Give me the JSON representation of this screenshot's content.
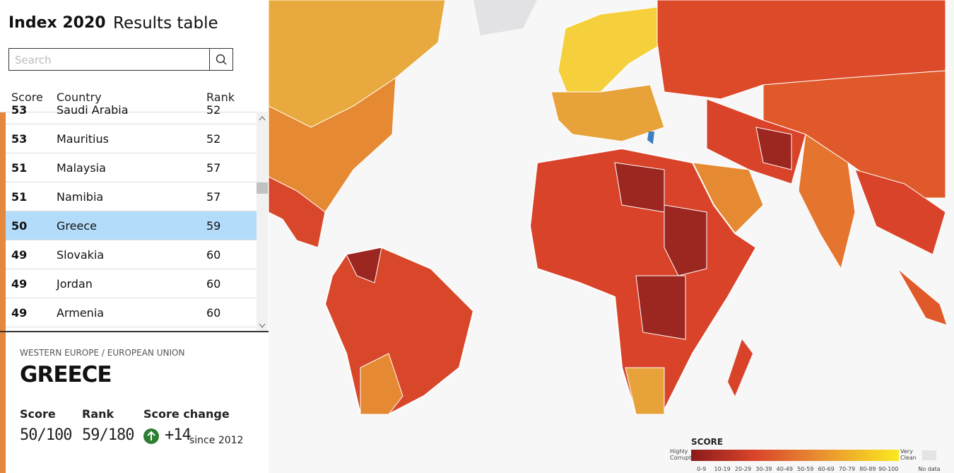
{
  "header": {
    "title": "Index 2020",
    "subtitle": "Results table"
  },
  "search": {
    "placeholder": "Search"
  },
  "table": {
    "columns": [
      "Score",
      "Country",
      "Rank"
    ],
    "rows": [
      [
        53,
        "Saudi Arabia",
        52
      ],
      [
        53,
        "Mauritius",
        52
      ],
      [
        51,
        "Malaysia",
        57
      ],
      [
        51,
        "Namibia",
        57
      ],
      [
        50,
        "Greece",
        59
      ],
      [
        49,
        "Slovakia",
        60
      ],
      [
        49,
        "Jordan",
        60
      ],
      [
        49,
        "Armenia",
        60
      ]
    ]
  },
  "detail": {
    "region": "WESTERN EUROPE / EUROPEAN UNION",
    "country": "GREECE",
    "score_label": "Score",
    "score": "50/100",
    "rank_label": "Rank",
    "rank": "59/180",
    "change_label": "Score change",
    "change": "+14",
    "since": "since 2012"
  },
  "legend": {
    "title": "SCORE",
    "low": "Highly Corrupt",
    "high": "Very Clean",
    "ranges": [
      "0-9",
      "10-19",
      "20-29",
      "30-39",
      "40-49",
      "50-59",
      "60-69",
      "70-79",
      "80-89",
      "90-100"
    ],
    "no_data": "No data"
  }
}
